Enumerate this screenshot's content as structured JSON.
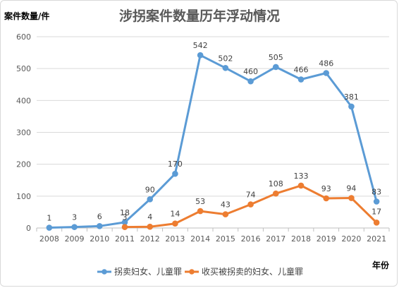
{
  "chart_data": {
    "type": "line",
    "title": "涉拐案件数量历年浮动情况",
    "ylabel": "案件数量/件",
    "xlabel": "年份",
    "ylim": [
      0,
      600
    ],
    "yticks": [
      0,
      100,
      200,
      300,
      400,
      500,
      600
    ],
    "grid": true,
    "legend_position": "bottom",
    "categories": [
      "2008",
      "2009",
      "2010",
      "2011",
      "2012",
      "2013",
      "2014",
      "2015",
      "2016",
      "2017",
      "2018",
      "2019",
      "2020",
      "2021"
    ],
    "series": [
      {
        "name": "拐卖妇女、儿童罪",
        "color": "#5b9bd5",
        "values": [
          1,
          3,
          6,
          18,
          90,
          170,
          542,
          502,
          460,
          505,
          466,
          486,
          381,
          83
        ]
      },
      {
        "name": "收买被拐卖的妇女、儿童罪",
        "color": "#ed7d31",
        "values": [
          null,
          null,
          null,
          3,
          4,
          14,
          53,
          43,
          74,
          108,
          133,
          93,
          94,
          17
        ]
      }
    ]
  }
}
